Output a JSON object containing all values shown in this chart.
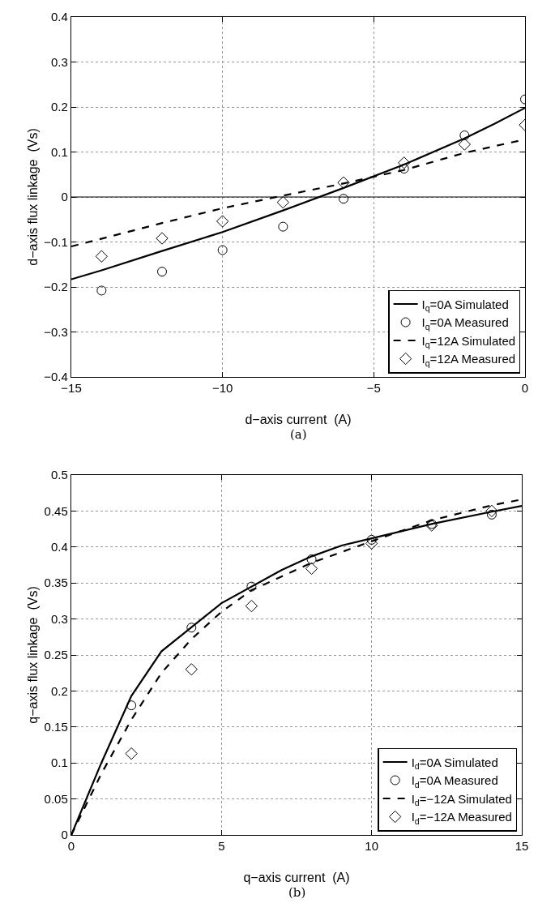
{
  "chart_data": [
    {
      "type": "line",
      "xlabel": "d−axis current  (A)",
      "ylabel": "d−axis flux linkage  (Vs)",
      "annotations": [
        "(a)"
      ],
      "xlim": [
        -15,
        0
      ],
      "ylim": [
        -0.4,
        0.4
      ],
      "xticks": [
        {
          "value": -15,
          "label": "−15"
        },
        {
          "value": -10,
          "label": "−10"
        },
        {
          "value": -5,
          "label": "−5"
        },
        0
      ],
      "yticks": [
        {
          "value": -0.4,
          "label": "−0.4"
        },
        {
          "value": -0.3,
          "label": "−0.3"
        },
        {
          "value": -0.2,
          "label": "−0.2"
        },
        {
          "value": -0.1,
          "label": "−0.1"
        },
        0,
        0.1,
        0.2,
        0.3,
        0.4
      ],
      "grid": true,
      "legend": "bottom right",
      "ref_lines": [
        {
          "axis": "y",
          "value": 0,
          "color": "#000000"
        }
      ],
      "series": [
        {
          "name": "I$_{q}$=0A Simulated",
          "line_style": "solid",
          "marker": "none",
          "color": "#000000",
          "x": [
            -15,
            -14,
            -12,
            -10,
            -8,
            -6,
            -4,
            -2,
            -1,
            0
          ],
          "values": [
            -0.183,
            -0.163,
            -0.12,
            -0.078,
            -0.03,
            0.02,
            0.072,
            0.13,
            0.163,
            0.198
          ]
        },
        {
          "name": "I$_{q}$=0A Measured",
          "type": "scatter",
          "marker": "circle",
          "color": "#000000",
          "x": [
            -14,
            -12,
            -10,
            -8,
            -6,
            -4,
            -2,
            0
          ],
          "values": [
            -0.208,
            -0.166,
            -0.118,
            -0.066,
            -0.004,
            0.063,
            0.137,
            0.217
          ]
        },
        {
          "name": "I$_{q}$=12A Simulated",
          "line_style": "dashed",
          "marker": "none",
          "color": "#000000",
          "x": [
            -15,
            -12,
            -10,
            -8,
            -6,
            -4,
            -2,
            0
          ],
          "values": [
            -0.11,
            -0.058,
            -0.025,
            0.003,
            0.03,
            0.06,
            0.098,
            0.128
          ]
        },
        {
          "name": "I$_{q}$=12A Measured",
          "type": "scatter",
          "marker": "diamond",
          "color": "#000000",
          "x": [
            -14,
            -12,
            -10,
            -8,
            -6,
            -4,
            -2,
            0
          ],
          "values": [
            -0.132,
            -0.092,
            -0.054,
            -0.012,
            0.032,
            0.076,
            0.117,
            0.16
          ]
        }
      ]
    },
    {
      "type": "line",
      "xlabel": "q−axis current  (A)",
      "ylabel": "q−axis flux linkage  (Vs)",
      "annotations": [
        "(b)"
      ],
      "xlim": [
        0,
        15
      ],
      "ylim": [
        0,
        0.5
      ],
      "xticks": [
        0,
        5,
        10,
        15
      ],
      "yticks": [
        0,
        0.05,
        0.1,
        0.15,
        0.2,
        0.25,
        0.3,
        0.35,
        0.4,
        0.45,
        0.5
      ],
      "grid": true,
      "legend": "bottom right",
      "series": [
        {
          "name": "I$_{d}$=0A Simulated",
          "line_style": "solid",
          "marker": "none",
          "color": "#000000",
          "x": [
            0,
            1,
            2,
            3,
            5,
            7,
            8,
            9,
            10,
            12,
            14,
            15
          ],
          "values": [
            0,
            0.1,
            0.193,
            0.255,
            0.322,
            0.368,
            0.387,
            0.402,
            0.412,
            0.432,
            0.449,
            0.457
          ]
        },
        {
          "name": "I$_{d}$=0A Measured",
          "type": "scatter",
          "marker": "circle",
          "color": "#000000",
          "x": [
            2,
            4,
            6,
            8,
            10,
            12,
            14
          ],
          "values": [
            0.18,
            0.288,
            0.345,
            0.383,
            0.41,
            0.432,
            0.445
          ]
        },
        {
          "name": "I$_{d}$=−12A Simulated",
          "line_style": "dashed",
          "marker": "none",
          "color": "#000000",
          "x": [
            0,
            1,
            2,
            3,
            4,
            5,
            6,
            8,
            10,
            12,
            14,
            15
          ],
          "values": [
            0,
            0.085,
            0.16,
            0.225,
            0.272,
            0.31,
            0.34,
            0.378,
            0.408,
            0.437,
            0.458,
            0.466
          ]
        },
        {
          "name": "I$_{d}$=−12A Measured",
          "type": "scatter",
          "marker": "diamond",
          "color": "#000000",
          "x": [
            2,
            4,
            6,
            8,
            10,
            12,
            14
          ],
          "values": [
            0.113,
            0.23,
            0.318,
            0.37,
            0.405,
            0.43,
            0.45
          ]
        }
      ]
    }
  ]
}
